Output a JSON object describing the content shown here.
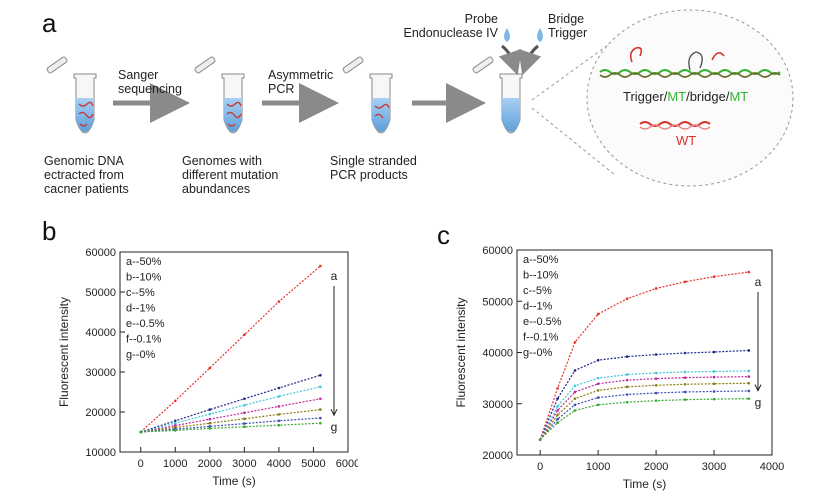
{
  "figure": {
    "panel_a": {
      "letter": "a",
      "step1_caption": [
        "Genomic DNA",
        "ectracted from",
        "cacner patients"
      ],
      "arrow1_label": [
        "Sanger",
        "sequencing"
      ],
      "step2_caption": [
        "Genomes with",
        "different mutation",
        "abundances"
      ],
      "arrow2_label": [
        "Asymmetric",
        "PCR"
      ],
      "step3_caption": [
        "Single stranded",
        "PCR products"
      ],
      "reagents_left": [
        "Probe",
        "Endonuclease IV"
      ],
      "reagents_right": [
        "Bridge",
        "Trigger"
      ],
      "complex_label": {
        "parts": [
          "Trigger/",
          "MT",
          "/bridge/",
          "MT"
        ],
        "colors": [
          "#222222",
          "#2fb52f",
          "#222222",
          "#2fb52f"
        ]
      },
      "wt_label": "WT",
      "colors": {
        "arrow": "#8a8a8a",
        "tube_liquid": "#7fb6e6",
        "wt": "#d9342b",
        "mt": "#2fb52f"
      }
    }
  },
  "chart_data": [
    {
      "panel": "b",
      "type": "line",
      "xlabel": "Time (s)",
      "ylabel": "Fluorescent intensity",
      "xlim": [
        -600,
        6000
      ],
      "ylim": [
        10000,
        60000
      ],
      "xticks": [
        0,
        1000,
        2000,
        3000,
        4000,
        5000,
        6000
      ],
      "yticks": [
        10000,
        20000,
        30000,
        40000,
        50000,
        60000
      ],
      "legend": [
        "a--50%",
        "b--10%",
        "c--5%",
        "d--1%",
        "e--0.5%",
        "f--0.1%",
        "g--0%"
      ],
      "legend_position": "top-left",
      "arrow_labels": [
        "a",
        "g"
      ],
      "series": [
        {
          "name": "a",
          "color": "#e8312c",
          "x": [
            0,
            1000,
            2000,
            3000,
            4000,
            5200
          ],
          "values": [
            15000,
            22800,
            31000,
            39300,
            47600,
            56500
          ]
        },
        {
          "name": "b",
          "color": "#1f2a8a",
          "x": [
            0,
            1000,
            2000,
            3000,
            4000,
            5200
          ],
          "values": [
            15000,
            17800,
            20600,
            23300,
            26000,
            29200
          ]
        },
        {
          "name": "c",
          "color": "#40c8d8",
          "x": [
            0,
            1000,
            2000,
            3000,
            4000,
            5200
          ],
          "values": [
            15000,
            17200,
            19500,
            21700,
            23900,
            26300
          ]
        },
        {
          "name": "d",
          "color": "#c0279a",
          "x": [
            0,
            1000,
            2000,
            3000,
            4000,
            5200
          ],
          "values": [
            15000,
            16600,
            18200,
            19800,
            21400,
            23300
          ]
        },
        {
          "name": "e",
          "color": "#8c7d10",
          "x": [
            0,
            1000,
            2000,
            3000,
            4000,
            5200
          ],
          "values": [
            15000,
            16100,
            17200,
            18300,
            19400,
            20600
          ]
        },
        {
          "name": "f",
          "color": "#3d4fb5",
          "x": [
            0,
            1000,
            2000,
            3000,
            4000,
            5200
          ],
          "values": [
            15000,
            15700,
            16400,
            17100,
            17800,
            18500
          ]
        },
        {
          "name": "g",
          "color": "#3aaa35",
          "x": [
            0,
            1000,
            2000,
            3000,
            4000,
            5200
          ],
          "values": [
            15000,
            15400,
            15900,
            16300,
            16700,
            17200
          ]
        }
      ]
    },
    {
      "panel": "c",
      "type": "line",
      "xlabel": "Time (s)",
      "ylabel": "Fluorescent intensity",
      "xlim": [
        -400,
        4000
      ],
      "ylim": [
        20000,
        60000
      ],
      "xticks": [
        0,
        1000,
        2000,
        3000,
        4000
      ],
      "yticks": [
        20000,
        30000,
        40000,
        50000,
        60000
      ],
      "legend": [
        "a--50%",
        "b--10%",
        "c--5%",
        "d--1%",
        "e--0.5%",
        "f--0.1%",
        "g--0%"
      ],
      "legend_position": "top-left",
      "arrow_labels": [
        "a",
        "g"
      ],
      "series": [
        {
          "name": "a",
          "color": "#e8312c",
          "x": [
            0,
            300,
            600,
            1000,
            1500,
            2000,
            2500,
            3000,
            3600
          ],
          "values": [
            23000,
            33000,
            42000,
            47500,
            50500,
            52500,
            53800,
            54800,
            55700
          ]
        },
        {
          "name": "b",
          "color": "#1f2a8a",
          "x": [
            0,
            300,
            600,
            1000,
            1500,
            2000,
            2500,
            3000,
            3600
          ],
          "values": [
            23000,
            31000,
            36500,
            38500,
            39200,
            39600,
            39900,
            40100,
            40400
          ]
        },
        {
          "name": "c",
          "color": "#40c8d8",
          "x": [
            0,
            300,
            600,
            1000,
            1500,
            2000,
            2500,
            3000,
            3600
          ],
          "values": [
            23000,
            29500,
            33500,
            35000,
            35700,
            36000,
            36200,
            36300,
            36400
          ]
        },
        {
          "name": "d",
          "color": "#c0279a",
          "x": [
            0,
            300,
            600,
            1000,
            1500,
            2000,
            2500,
            3000,
            3600
          ],
          "values": [
            23000,
            28700,
            32300,
            33900,
            34600,
            34900,
            35100,
            35200,
            35300
          ]
        },
        {
          "name": "e",
          "color": "#8c7d10",
          "x": [
            0,
            300,
            600,
            1000,
            1500,
            2000,
            2500,
            3000,
            3600
          ],
          "values": [
            23000,
            27800,
            31000,
            32600,
            33300,
            33600,
            33800,
            33900,
            34000
          ]
        },
        {
          "name": "f",
          "color": "#3d4fb5",
          "x": [
            0,
            300,
            600,
            1000,
            1500,
            2000,
            2500,
            3000,
            3600
          ],
          "values": [
            23000,
            27000,
            29800,
            31200,
            31800,
            32100,
            32300,
            32400,
            32500
          ]
        },
        {
          "name": "g",
          "color": "#3aaa35",
          "x": [
            0,
            300,
            600,
            1000,
            1500,
            2000,
            2500,
            3000,
            3600
          ],
          "values": [
            23000,
            26300,
            28700,
            29800,
            30300,
            30600,
            30800,
            30900,
            31000
          ]
        }
      ]
    }
  ]
}
